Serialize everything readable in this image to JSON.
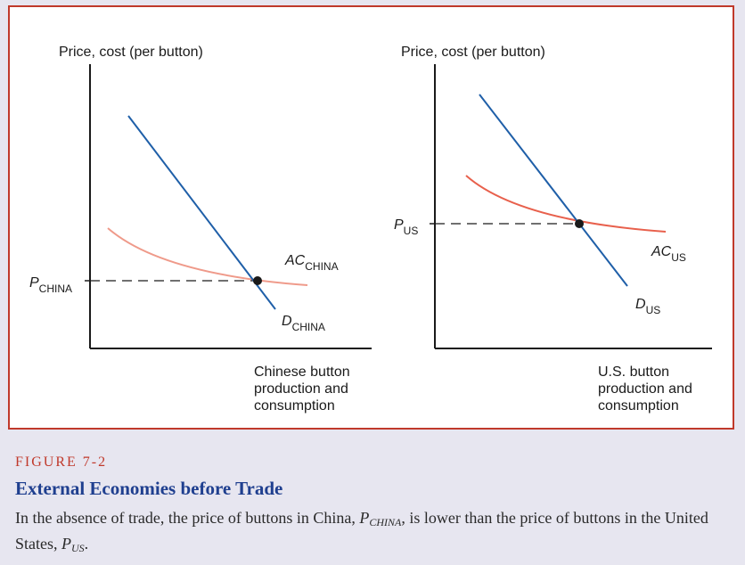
{
  "left_chart": {
    "y_axis_label": "Price, cost (per button)",
    "x_axis_label_lines": [
      "Chinese button",
      "production and",
      "consumption"
    ],
    "price_label": {
      "main": "P",
      "sub": "CHINA"
    },
    "ac_label": {
      "main": "AC",
      "sub": "CHINA"
    },
    "d_label": {
      "main": "D",
      "sub": "CHINA"
    }
  },
  "right_chart": {
    "y_axis_label": "Price, cost (per button)",
    "x_axis_label_lines": [
      "U.S. button",
      "production and",
      "consumption"
    ],
    "price_label": {
      "main": "P",
      "sub": "US"
    },
    "ac_label": {
      "main": "AC",
      "sub": "US"
    },
    "d_label": {
      "main": "D",
      "sub": "US"
    }
  },
  "caption": {
    "figure_number": "FIGURE 7-2",
    "title": "External Economies before Trade",
    "text_part1": "In the absence of trade, the price of buttons in China, ",
    "p_china_main": "P",
    "p_china_sub": "CHINA",
    "text_part2": ", is lower than the price of buttons in the United States, ",
    "p_us_main": "P",
    "p_us_sub": "US",
    "text_part3": "."
  },
  "colors": {
    "border": "#c0392b",
    "demand_line": "#1f5fa8",
    "ac_china_curve": "#ef9a8a",
    "ac_us_curve": "#e8604c",
    "figure_number": "#c0392b",
    "title": "#1f3f8f",
    "background": "#e7e6f0"
  }
}
